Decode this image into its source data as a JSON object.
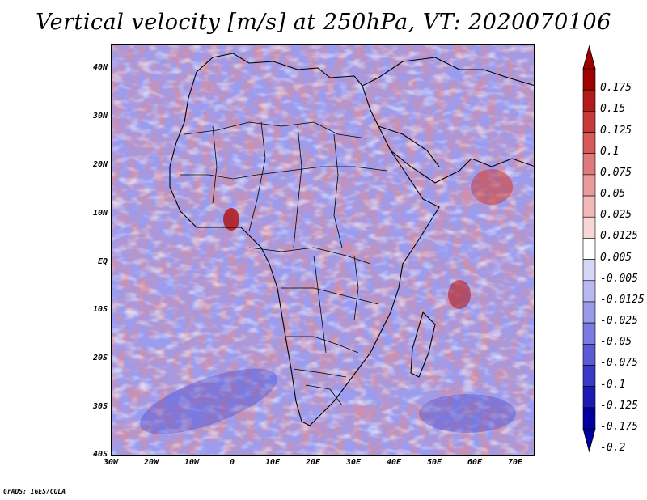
{
  "title": "Vertical velocity [m/s] at 250hPa, VT: 2020070106",
  "credit": "GrADS: IGES/COLA",
  "map": {
    "lat_labels": [
      "40N",
      "30N",
      "20N",
      "10N",
      "EQ",
      "10S",
      "20S",
      "30S",
      "40S"
    ],
    "lon_labels": [
      "30W",
      "20W",
      "10W",
      "0",
      "10E",
      "20E",
      "30E",
      "40E",
      "50E",
      "60E",
      "70E"
    ],
    "lat_range": [
      -40,
      45
    ],
    "lon_range": [
      -30,
      75
    ],
    "shading": "vertical velocity field",
    "features": [
      "coastlines",
      "country borders"
    ]
  },
  "colorbar": {
    "levels": [
      "0.175",
      "0.15",
      "0.125",
      "0.1",
      "0.075",
      "0.05",
      "0.025",
      "0.0125",
      "0.005",
      "-0.005",
      "-0.0125",
      "-0.025",
      "-0.05",
      "-0.075",
      "-0.1",
      "-0.125",
      "-0.175",
      "-0.2"
    ],
    "colors": [
      "#a00000",
      "#b51a1a",
      "#c83a3a",
      "#d65a5a",
      "#e07a7a",
      "#ea9a9a",
      "#f2b9b9",
      "#f8d6d6",
      "#ffffff",
      "#d6d6f8",
      "#b9b9f2",
      "#9a9aea",
      "#7a7ae0",
      "#5a5ad6",
      "#3a3ac8",
      "#1a1ab5",
      "#0000a0"
    ]
  }
}
